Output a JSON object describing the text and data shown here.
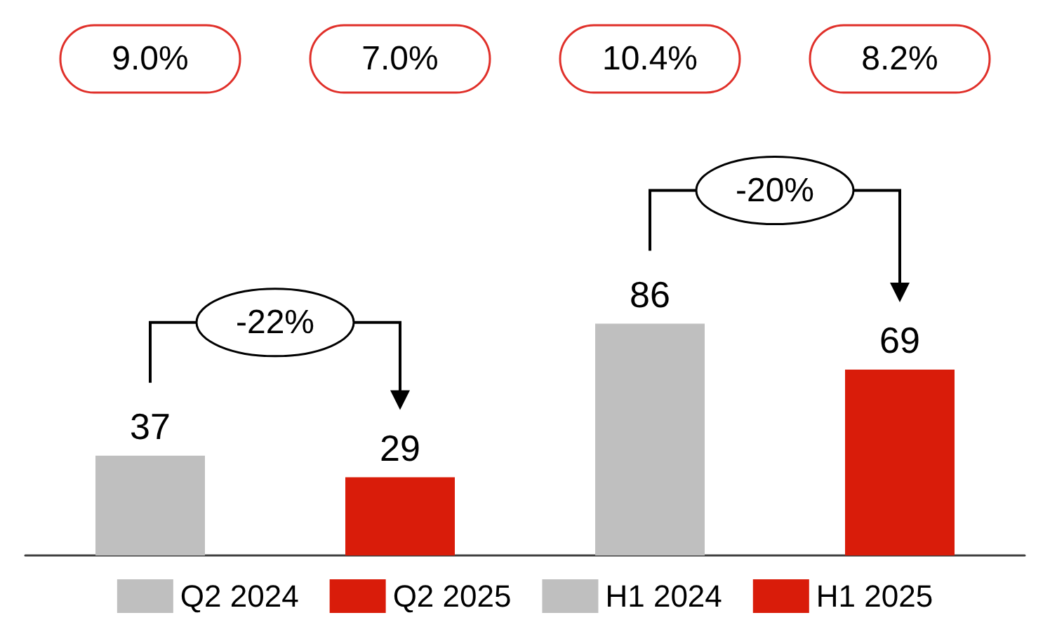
{
  "chart_data": {
    "type": "bar",
    "categories": [
      null,
      null,
      null,
      null
    ],
    "stacked": true,
    "data_labels": true,
    "legend": "bottom",
    "series": [
      {
        "name": "Q2 2024",
        "color": "#bfbfbf",
        "values": [
          37,
          null,
          null,
          null
        ]
      },
      {
        "name": "Q2 2025",
        "color": "#d91c0a",
        "values": [
          null,
          29,
          null,
          null
        ]
      },
      {
        "name": "H1 2024",
        "color": "#bfbfbf",
        "values": [
          null,
          null,
          86,
          null
        ]
      },
      {
        "name": "H1 2025",
        "color": "#d91c0a",
        "values": [
          null,
          null,
          null,
          69
        ]
      }
    ],
    "annotations": [
      "9.0%",
      "7.0%",
      "10.4%",
      "8.2%",
      "-22%",
      "-20%"
    ]
  }
}
